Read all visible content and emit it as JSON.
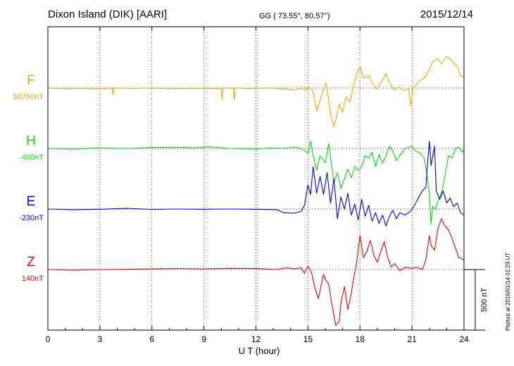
{
  "header": {
    "station": "Dixon Island (DIK)  [AARI]",
    "coords": "GG ( 73.55°,  80.57°)",
    "date": "2015/12/14"
  },
  "chart_data": {
    "type": "line",
    "xlabel": "U T (hour)",
    "xlim": [
      0,
      24
    ],
    "xticks": [
      0,
      3,
      6,
      9,
      12,
      15,
      18,
      21,
      24
    ],
    "tick_labels": [
      "0",
      "3",
      "6",
      "9",
      "12",
      "15",
      "18",
      "21",
      "24"
    ],
    "grid": true,
    "scale_bar": {
      "label": "500 nT",
      "value_nT": 500
    },
    "plotted_note": "Plotted at 2016/01/14 01:29 UT",
    "series": [
      {
        "name": "F",
        "baseline_label": "58750nT",
        "color": "#f0a800",
        "points": [
          [
            0,
            0
          ],
          [
            1,
            -5
          ],
          [
            2,
            -3
          ],
          [
            3,
            -8
          ],
          [
            3.7,
            0
          ],
          [
            3.75,
            -55
          ],
          [
            3.8,
            0
          ],
          [
            5,
            -3
          ],
          [
            6,
            0
          ],
          [
            7,
            -5
          ],
          [
            8,
            -3
          ],
          [
            9,
            -2
          ],
          [
            10,
            -5
          ],
          [
            10.05,
            -95
          ],
          [
            10.1,
            0
          ],
          [
            10.7,
            -2
          ],
          [
            10.75,
            -95
          ],
          [
            10.8,
            0
          ],
          [
            11.5,
            -3
          ],
          [
            13,
            0
          ],
          [
            13.6,
            -8
          ],
          [
            14.2,
            -20
          ],
          [
            14.6,
            -5
          ],
          [
            14.9,
            -15
          ],
          [
            15.1,
            8
          ],
          [
            15.3,
            -30
          ],
          [
            15.5,
            -190
          ],
          [
            15.7,
            -100
          ],
          [
            15.9,
            -10
          ],
          [
            16.05,
            40
          ],
          [
            16.15,
            -60
          ],
          [
            16.3,
            -210
          ],
          [
            16.5,
            -320
          ],
          [
            16.6,
            -270
          ],
          [
            16.8,
            -130
          ],
          [
            17.0,
            -200
          ],
          [
            17.2,
            -70
          ],
          [
            17.4,
            -120
          ],
          [
            17.6,
            0
          ],
          [
            17.8,
            110
          ],
          [
            18.0,
            180
          ],
          [
            18.2,
            80
          ],
          [
            18.5,
            100
          ],
          [
            18.8,
            20
          ],
          [
            19.0,
            -10
          ],
          [
            19.2,
            40
          ],
          [
            19.5,
            120
          ],
          [
            19.7,
            40
          ],
          [
            20.0,
            -20
          ],
          [
            20.2,
            10
          ],
          [
            20.5,
            -20
          ],
          [
            20.8,
            -10
          ],
          [
            20.95,
            -150
          ],
          [
            21.05,
            -10
          ],
          [
            21.4,
            60
          ],
          [
            21.7,
            80
          ],
          [
            22.0,
            150
          ],
          [
            22.2,
            220
          ],
          [
            22.5,
            240
          ],
          [
            22.7,
            200
          ],
          [
            23.0,
            260
          ],
          [
            23.2,
            240
          ],
          [
            23.4,
            210
          ],
          [
            23.6,
            180
          ],
          [
            23.8,
            100
          ],
          [
            24,
            90
          ]
        ]
      },
      {
        "name": "H",
        "baseline_label": "-400nT",
        "color": "#00dc00",
        "points": [
          [
            0,
            0
          ],
          [
            1.5,
            -5
          ],
          [
            3,
            5
          ],
          [
            4.5,
            0
          ],
          [
            6,
            8
          ],
          [
            7.5,
            10
          ],
          [
            8.5,
            5
          ],
          [
            9.3,
            15
          ],
          [
            10.5,
            0
          ],
          [
            12,
            -5
          ],
          [
            12.8,
            5
          ],
          [
            13.5,
            0
          ],
          [
            14.3,
            12
          ],
          [
            14.7,
            -5
          ],
          [
            15.0,
            -40
          ],
          [
            15.15,
            60
          ],
          [
            15.3,
            -60
          ],
          [
            15.5,
            -180
          ],
          [
            15.7,
            -60
          ],
          [
            16.0,
            -120
          ],
          [
            16.2,
            40
          ],
          [
            16.5,
            -280
          ],
          [
            16.7,
            -200
          ],
          [
            16.9,
            -330
          ],
          [
            17.1,
            -250
          ],
          [
            17.3,
            -170
          ],
          [
            17.5,
            -240
          ],
          [
            17.7,
            -150
          ],
          [
            17.9,
            -180
          ],
          [
            18.1,
            -150
          ],
          [
            18.3,
            -60
          ],
          [
            18.5,
            -80
          ],
          [
            18.7,
            -30
          ],
          [
            18.9,
            -150
          ],
          [
            19.1,
            -50
          ],
          [
            19.3,
            -120
          ],
          [
            19.5,
            -60
          ],
          [
            19.7,
            20
          ],
          [
            19.9,
            -20
          ],
          [
            20.1,
            -100
          ],
          [
            20.3,
            -60
          ],
          [
            20.6,
            0
          ],
          [
            21.0,
            20
          ],
          [
            21.2,
            -20
          ],
          [
            21.5,
            -40
          ],
          [
            21.7,
            -80
          ],
          [
            21.85,
            -200
          ],
          [
            22.0,
            -380
          ],
          [
            22.1,
            -620
          ],
          [
            22.2,
            -480
          ],
          [
            22.35,
            -500
          ],
          [
            22.5,
            -430
          ],
          [
            22.7,
            -370
          ],
          [
            22.9,
            -230
          ],
          [
            23.1,
            -60
          ],
          [
            23.3,
            -80
          ],
          [
            23.5,
            0
          ],
          [
            23.7,
            10
          ],
          [
            23.9,
            -30
          ],
          [
            24,
            -10
          ]
        ]
      },
      {
        "name": "E",
        "baseline_label": "-230nT",
        "color": "#0000e6",
        "points": [
          [
            0,
            0
          ],
          [
            1.5,
            -5
          ],
          [
            3,
            -2
          ],
          [
            4.5,
            5
          ],
          [
            6,
            -3
          ],
          [
            7.5,
            0
          ],
          [
            9,
            -2
          ],
          [
            10.5,
            0
          ],
          [
            12,
            -2
          ],
          [
            13.2,
            -5
          ],
          [
            13.6,
            -30
          ],
          [
            14.2,
            -35
          ],
          [
            14.6,
            -20
          ],
          [
            14.8,
            30
          ],
          [
            15.0,
            200
          ],
          [
            15.15,
            120
          ],
          [
            15.3,
            350
          ],
          [
            15.5,
            130
          ],
          [
            15.7,
            270
          ],
          [
            15.9,
            120
          ],
          [
            16.1,
            300
          ],
          [
            16.3,
            50
          ],
          [
            16.5,
            250
          ],
          [
            16.7,
            -80
          ],
          [
            16.9,
            100
          ],
          [
            17.1,
            0
          ],
          [
            17.3,
            130
          ],
          [
            17.5,
            -50
          ],
          [
            17.7,
            40
          ],
          [
            17.9,
            -90
          ],
          [
            18.1,
            80
          ],
          [
            18.3,
            -60
          ],
          [
            18.5,
            30
          ],
          [
            18.7,
            -100
          ],
          [
            18.9,
            -30
          ],
          [
            19.1,
            -120
          ],
          [
            19.3,
            -50
          ],
          [
            19.5,
            -140
          ],
          [
            19.7,
            -60
          ],
          [
            19.9,
            -10
          ],
          [
            20.1,
            -80
          ],
          [
            20.3,
            -30
          ],
          [
            20.6,
            -50
          ],
          [
            20.9,
            -20
          ],
          [
            21.1,
            20
          ],
          [
            21.4,
            100
          ],
          [
            21.6,
            150
          ],
          [
            21.8,
            180
          ],
          [
            21.9,
            380
          ],
          [
            22.0,
            560
          ],
          [
            22.1,
            360
          ],
          [
            22.3,
            520
          ],
          [
            22.4,
            150
          ],
          [
            22.6,
            80
          ],
          [
            22.8,
            150
          ],
          [
            23.0,
            50
          ],
          [
            23.2,
            90
          ],
          [
            23.4,
            20
          ],
          [
            23.6,
            50
          ],
          [
            23.8,
            -30
          ],
          [
            24,
            -50
          ]
        ]
      },
      {
        "name": "Z",
        "baseline_label": "140nT",
        "color": "#e60000",
        "points": [
          [
            0,
            0
          ],
          [
            1.5,
            -5
          ],
          [
            3,
            0
          ],
          [
            4.5,
            2
          ],
          [
            6,
            5
          ],
          [
            7.5,
            8
          ],
          [
            9,
            5
          ],
          [
            10.5,
            10
          ],
          [
            12,
            8
          ],
          [
            13.2,
            0
          ],
          [
            13.8,
            15
          ],
          [
            14.2,
            5
          ],
          [
            14.6,
            15
          ],
          [
            14.8,
            -30
          ],
          [
            15.0,
            30
          ],
          [
            15.2,
            -20
          ],
          [
            15.4,
            -150
          ],
          [
            15.6,
            -240
          ],
          [
            15.8,
            -100
          ],
          [
            15.9,
            -40
          ],
          [
            16.0,
            -80
          ],
          [
            16.2,
            -120
          ],
          [
            16.4,
            -300
          ],
          [
            16.6,
            -460
          ],
          [
            16.8,
            -430
          ],
          [
            16.9,
            -280
          ],
          [
            17.1,
            -140
          ],
          [
            17.3,
            -330
          ],
          [
            17.5,
            -200
          ],
          [
            17.6,
            -100
          ],
          [
            17.8,
            50
          ],
          [
            18.0,
            280
          ],
          [
            18.2,
            100
          ],
          [
            18.4,
            150
          ],
          [
            18.6,
            240
          ],
          [
            18.8,
            120
          ],
          [
            19.0,
            60
          ],
          [
            19.2,
            150
          ],
          [
            19.4,
            230
          ],
          [
            19.6,
            100
          ],
          [
            19.8,
            20
          ],
          [
            20.0,
            50
          ],
          [
            20.3,
            -10
          ],
          [
            20.6,
            20
          ],
          [
            21.0,
            10
          ],
          [
            21.3,
            20
          ],
          [
            21.6,
            0
          ],
          [
            21.8,
            80
          ],
          [
            22.0,
            280
          ],
          [
            22.1,
            200
          ],
          [
            22.3,
            160
          ],
          [
            22.5,
            340
          ],
          [
            22.7,
            420
          ],
          [
            22.9,
            360
          ],
          [
            23.1,
            330
          ],
          [
            23.3,
            260
          ],
          [
            23.5,
            180
          ],
          [
            23.7,
            100
          ],
          [
            24,
            80
          ]
        ]
      }
    ]
  }
}
